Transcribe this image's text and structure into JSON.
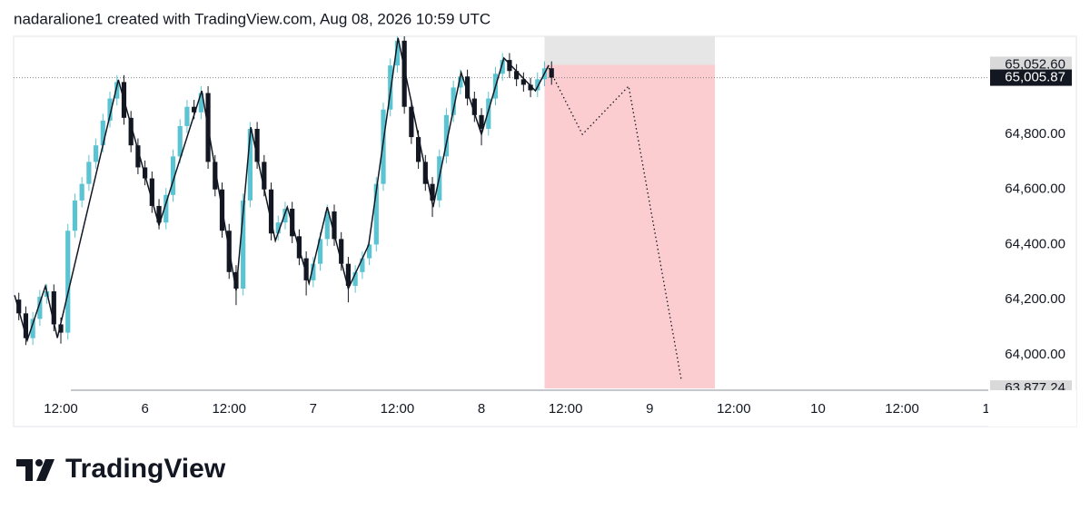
{
  "header": "nadaralione1 created with TradingView.com, Aug 08, 2026 10:59 UTC",
  "brand": "TradingView",
  "chart_data": {
    "type": "candlestick",
    "up_color": "#5ac4d2",
    "down_color": "#131722",
    "xlim": [
      5.26,
      144.3
    ],
    "ylim": [
      63871,
      65156
    ],
    "xticks": [
      {
        "value": 12,
        "label": "12:00"
      },
      {
        "value": 24,
        "label": "6"
      },
      {
        "value": 36,
        "label": "12:00"
      },
      {
        "value": 48,
        "label": "7"
      },
      {
        "value": 60,
        "label": "12:00"
      },
      {
        "value": 72,
        "label": "8"
      },
      {
        "value": 84,
        "label": "12:00"
      },
      {
        "value": 96,
        "label": "9"
      },
      {
        "value": 108,
        "label": "12:00"
      },
      {
        "value": 120,
        "label": "10"
      },
      {
        "value": 132,
        "label": "12:00"
      },
      {
        "value": 144,
        "label": "1"
      }
    ],
    "yticks": [
      {
        "value": 64800,
        "label": "64,800.00"
      },
      {
        "value": 64600,
        "label": "64,600.00"
      },
      {
        "value": 64400,
        "label": "64,400.00"
      },
      {
        "value": 64200,
        "label": "64,200.00"
      },
      {
        "value": 64000,
        "label": "64,000.00"
      }
    ],
    "x": [
      6,
      7,
      8,
      9,
      10,
      11,
      12,
      13,
      14,
      15,
      16,
      17,
      18,
      19,
      20,
      21,
      22,
      23,
      24,
      25,
      26,
      27,
      28,
      29,
      30,
      31,
      32,
      33,
      34,
      35,
      36,
      37,
      38,
      39,
      40,
      41,
      42,
      43,
      44,
      45,
      46,
      47,
      48,
      49,
      50,
      51,
      52,
      53,
      54,
      55,
      56,
      57,
      58,
      59,
      60,
      61,
      62,
      63,
      64,
      65,
      66,
      67,
      68,
      69,
      70,
      71,
      72,
      73,
      74,
      75,
      76,
      77,
      78,
      79,
      80,
      81,
      82
    ],
    "open": [
      64200,
      64150,
      64060,
      64130,
      64210,
      64230,
      64110,
      64080,
      64450,
      64560,
      64620,
      64700,
      64760,
      64850,
      64930,
      64990,
      64860,
      64760,
      64680,
      64640,
      64540,
      64480,
      64580,
      64720,
      64830,
      64900,
      64880,
      64950,
      64700,
      64600,
      64450,
      64300,
      64240,
      64560,
      64820,
      64700,
      64600,
      64440,
      64480,
      64530,
      64430,
      64350,
      64270,
      64330,
      64420,
      64520,
      64420,
      64330,
      64250,
      64300,
      64350,
      64400,
      64620,
      64890,
      65050,
      65140,
      64900,
      64790,
      64700,
      64620,
      64560,
      64720,
      64870,
      64970,
      65010,
      64930,
      64870,
      64820,
      64930,
      65020,
      65070,
      65030,
      65000,
      64980,
      64960,
      65000,
      65040
    ],
    "high": [
      64225,
      64175,
      64155,
      64235,
      64255,
      64255,
      64135,
      64475,
      64585,
      64645,
      64725,
      64785,
      64875,
      64955,
      65015,
      65015,
      64885,
      64785,
      64705,
      64665,
      64565,
      64605,
      64745,
      64855,
      64925,
      64925,
      64975,
      64975,
      64725,
      64625,
      64475,
      64325,
      64585,
      64845,
      64845,
      64725,
      64625,
      64505,
      64555,
      64555,
      64455,
      64375,
      64355,
      64445,
      64545,
      64545,
      64445,
      64355,
      64325,
      64375,
      64425,
      64645,
      64915,
      65075,
      65165,
      65165,
      64925,
      64815,
      64725,
      64645,
      64745,
      64895,
      64995,
      65035,
      65035,
      64955,
      64895,
      64955,
      65045,
      65095,
      65095,
      65055,
      65025,
      65005,
      65025,
      65065,
      65065
    ],
    "low": [
      64125,
      64035,
      64035,
      64105,
      64185,
      64085,
      64040,
      64055,
      64425,
      64535,
      64595,
      64675,
      64735,
      64825,
      64905,
      64835,
      64735,
      64655,
      64615,
      64515,
      64455,
      64455,
      64555,
      64695,
      64805,
      64855,
      64855,
      64675,
      64575,
      64425,
      64275,
      64180,
      64215,
      64535,
      64675,
      64575,
      64415,
      64415,
      64455,
      64405,
      64325,
      64215,
      64245,
      64305,
      64395,
      64395,
      64305,
      64190,
      64225,
      64275,
      64325,
      64375,
      64595,
      64865,
      65025,
      64875,
      64765,
      64675,
      64595,
      64500,
      64535,
      64695,
      64845,
      64945,
      64905,
      64845,
      64760,
      64795,
      64905,
      64995,
      65005,
      64975,
      64955,
      64935,
      64935,
      64975,
      64980
    ],
    "close": [
      64150,
      64060,
      64130,
      64210,
      64230,
      64110,
      64080,
      64450,
      64560,
      64620,
      64700,
      64760,
      64850,
      64930,
      64990,
      64860,
      64760,
      64680,
      64640,
      64540,
      64480,
      64580,
      64720,
      64830,
      64900,
      64880,
      64950,
      64700,
      64600,
      64450,
      64300,
      64240,
      64560,
      64820,
      64700,
      64600,
      64440,
      64480,
      64530,
      64430,
      64350,
      64270,
      64330,
      64420,
      64520,
      64420,
      64330,
      64250,
      64300,
      64350,
      64400,
      64620,
      64890,
      65050,
      65140,
      64900,
      64790,
      64700,
      64620,
      64560,
      64720,
      64870,
      64970,
      65010,
      64930,
      64870,
      64820,
      64930,
      65020,
      65070,
      65030,
      65000,
      64980,
      64960,
      65000,
      65040,
      65005.87
    ],
    "zigzag": {
      "x": [
        5.4,
        7.2,
        9.8,
        11.5,
        20.2,
        26,
        32.1,
        37,
        39.1,
        42.6,
        44.3,
        47.4,
        50,
        53,
        55.9,
        60.1,
        65.1,
        69.1,
        72,
        75.2,
        79.7,
        81.6
      ],
      "values": [
        64216,
        64052,
        64249,
        64061,
        64998,
        64470,
        64958,
        64233,
        64826,
        64414,
        64536,
        64259,
        64536,
        64240,
        64398,
        65150,
        64536,
        65024,
        64800,
        65077,
        64958,
        65051
      ]
    },
    "projection": {
      "x": [
        81.6,
        86.4,
        93,
        100.5
      ],
      "values": [
        65041,
        64800,
        64975,
        63910
      ]
    },
    "position": {
      "x_start": 81,
      "x_end": 105.3,
      "stop": 65160,
      "entry": {
        "value": 65052.6,
        "label": "65,052.60"
      },
      "target": {
        "value": 63877.24,
        "label": "63,877.24"
      }
    },
    "last_price": {
      "value": 65005.87,
      "label": "65,005.87"
    }
  }
}
